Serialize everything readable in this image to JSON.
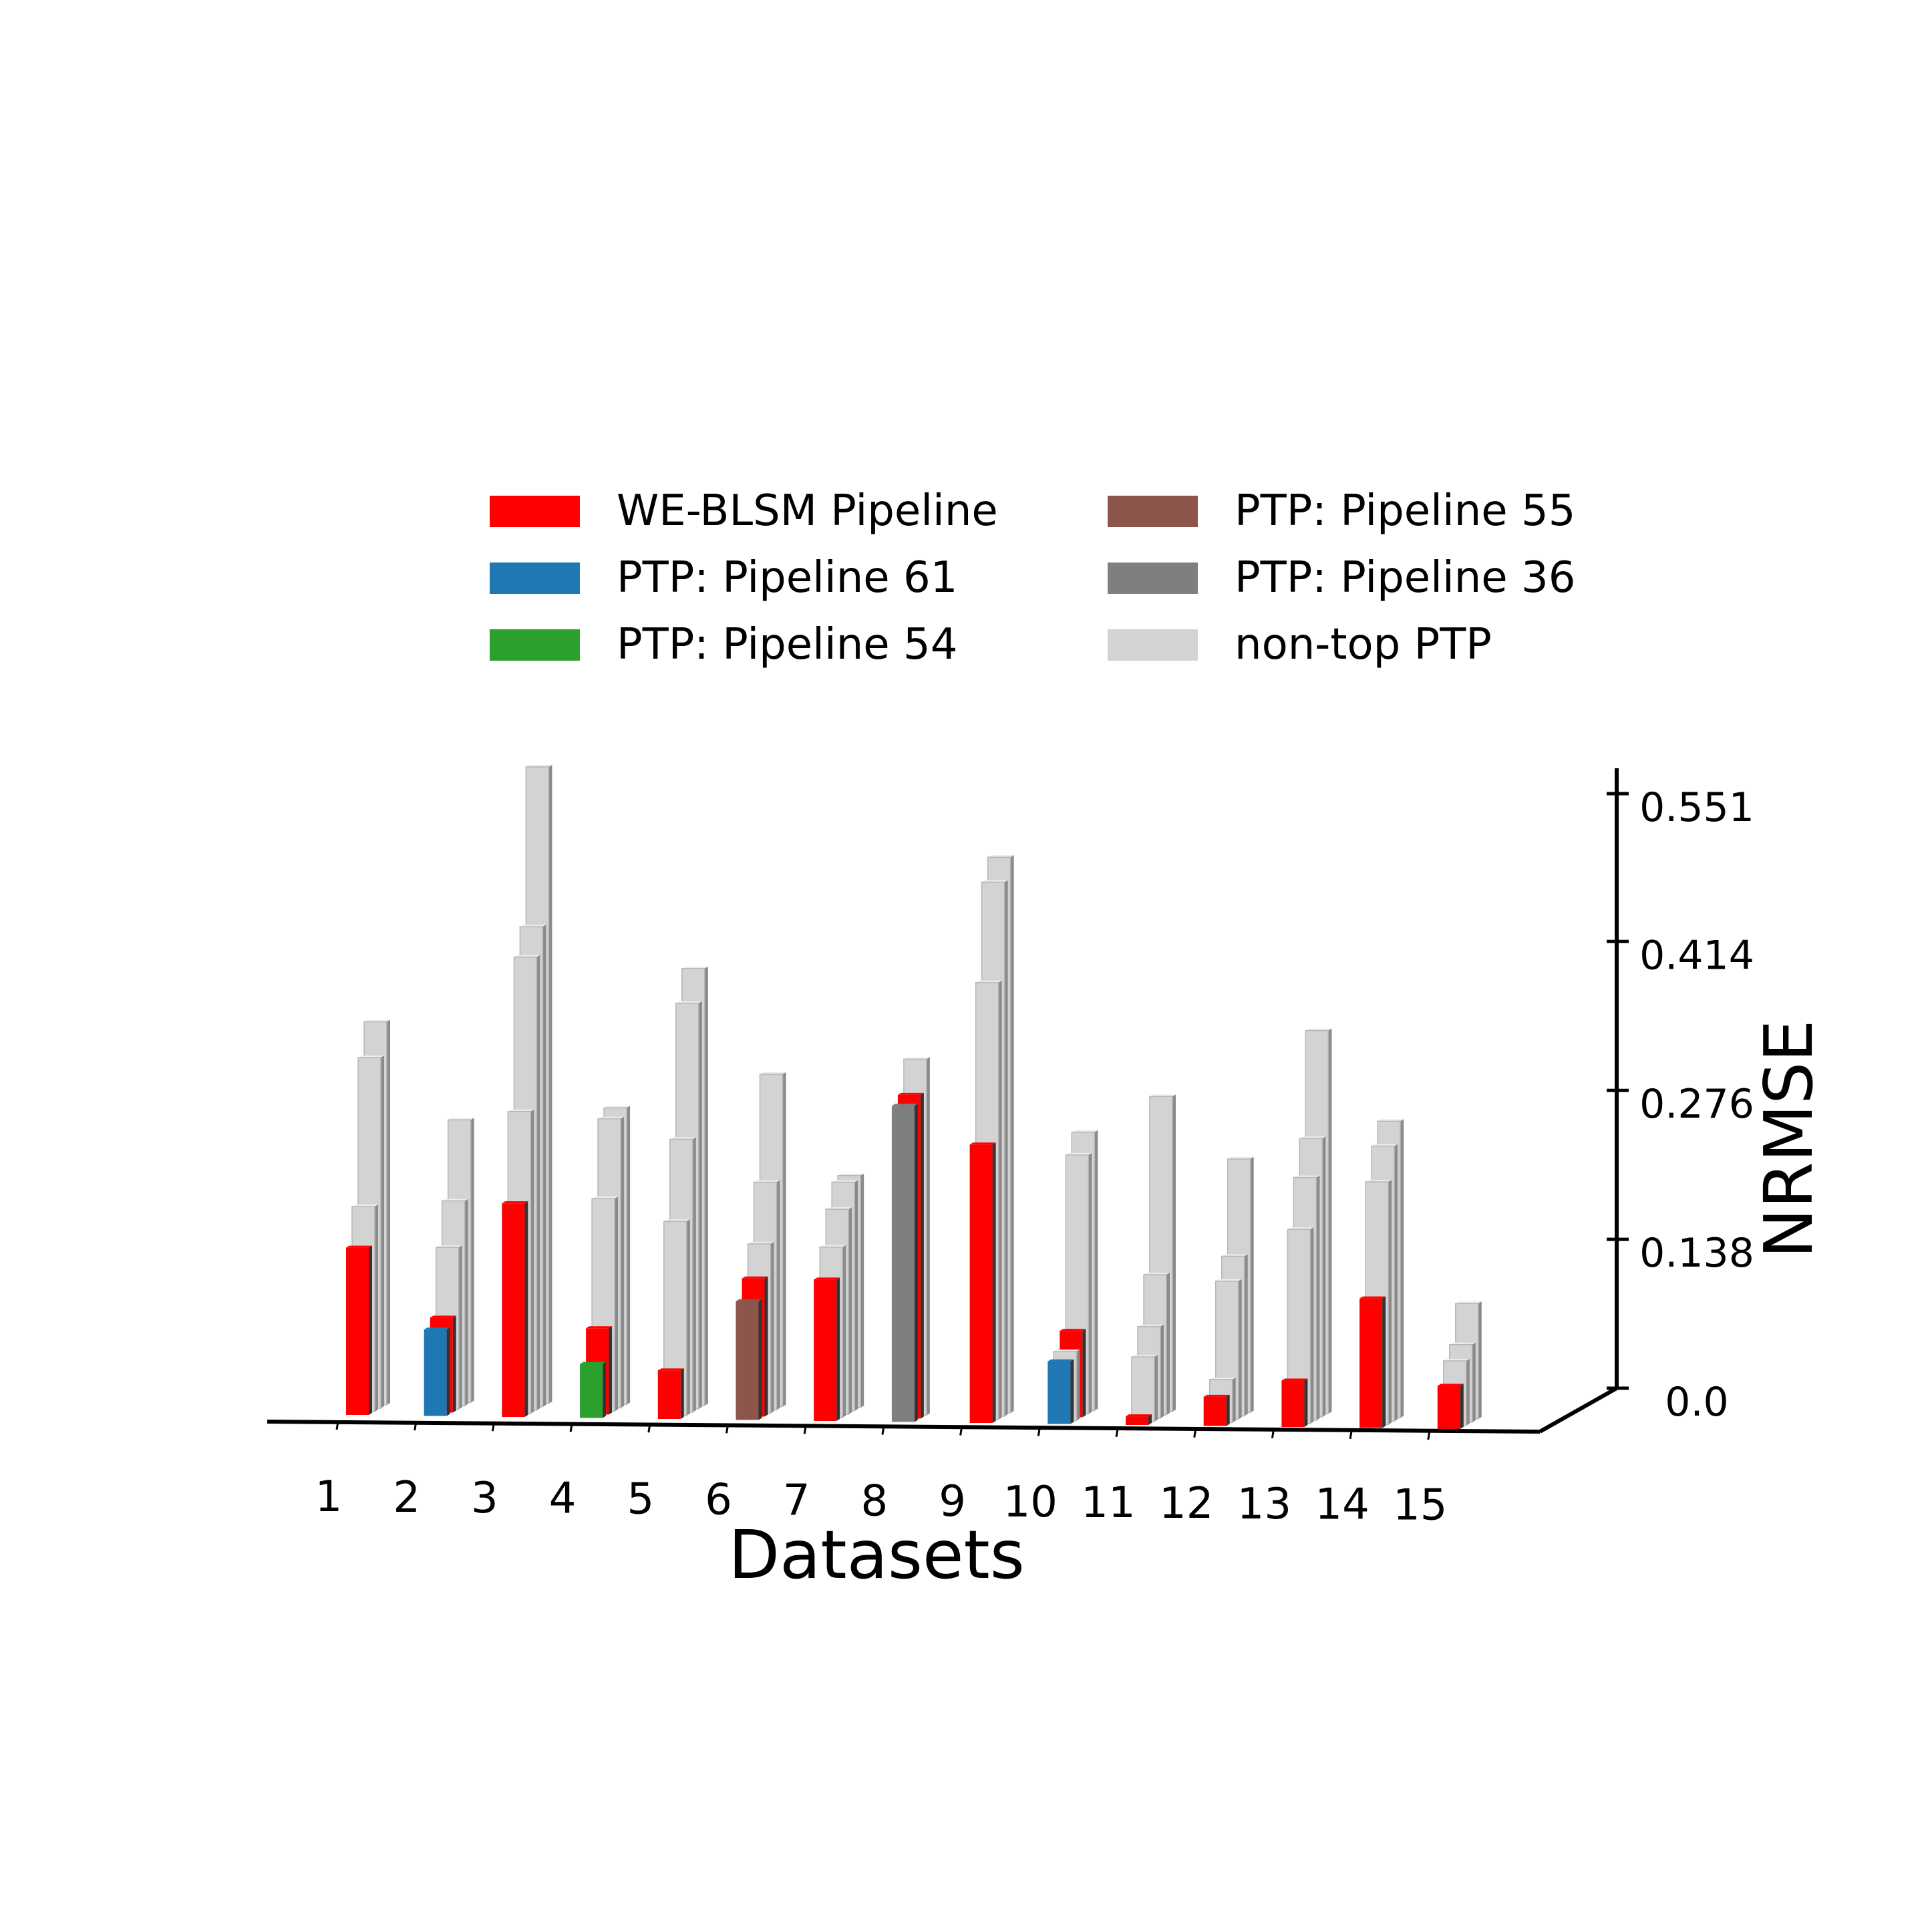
{
  "chart_data": {
    "type": "bar",
    "subtype": "3d-grouped-bar",
    "title": "",
    "xlabel": "Datasets",
    "zlabel": "NRMSE",
    "categories": [
      "1",
      "2",
      "3",
      "4",
      "5",
      "6",
      "7",
      "8",
      "9",
      "10",
      "11",
      "12",
      "13",
      "14",
      "15"
    ],
    "z_ticks": [
      "0.0",
      "0.138",
      "0.276",
      "0.414",
      "0.551"
    ],
    "zlim": [
      0,
      0.551
    ],
    "legend_position": "top-center",
    "legend": [
      {
        "label": "WE-BLSM Pipeline",
        "color": "#ff0000"
      },
      {
        "label": "PTP: Pipeline 61",
        "color": "#1f77b4"
      },
      {
        "label": "PTP: Pipeline 54",
        "color": "#2ca02c"
      },
      {
        "label": "PTP: Pipeline 55",
        "color": "#8c564b"
      },
      {
        "label": "PTP: Pipeline 36",
        "color": "#7f7f7f"
      },
      {
        "label": "non-top PTP",
        "color": "#d3d3d3"
      }
    ],
    "datasets": [
      {
        "category": "1",
        "bars": [
          {
            "series": "WE-BLSM Pipeline",
            "value": 0.155
          },
          {
            "series": "non-top PTP",
            "value": 0.19
          },
          {
            "series": "non-top PTP",
            "value": 0.325
          },
          {
            "series": "non-top PTP",
            "value": 0.355
          }
        ]
      },
      {
        "category": "2",
        "bars": [
          {
            "series": "PTP: Pipeline 61",
            "value": 0.08
          },
          {
            "series": "WE-BLSM Pipeline",
            "value": 0.088
          },
          {
            "series": "non-top PTP",
            "value": 0.15
          },
          {
            "series": "non-top PTP",
            "value": 0.19
          },
          {
            "series": "non-top PTP",
            "value": 0.262
          }
        ]
      },
      {
        "category": "3",
        "bars": [
          {
            "series": "WE-BLSM Pipeline",
            "value": 0.198
          },
          {
            "series": "non-top PTP",
            "value": 0.28
          },
          {
            "series": "non-top PTP",
            "value": 0.42
          },
          {
            "series": "non-top PTP",
            "value": 0.445
          },
          {
            "series": "non-top PTP",
            "value": 0.59
          }
        ]
      },
      {
        "category": "4",
        "bars": [
          {
            "series": "PTP: Pipeline 54",
            "value": 0.05
          },
          {
            "series": "WE-BLSM Pipeline",
            "value": 0.08
          },
          {
            "series": "non-top PTP",
            "value": 0.197
          },
          {
            "series": "non-top PTP",
            "value": 0.268
          },
          {
            "series": "non-top PTP",
            "value": 0.275
          }
        ]
      },
      {
        "category": "5",
        "bars": [
          {
            "series": "WE-BLSM Pipeline",
            "value": 0.045
          },
          {
            "series": "non-top PTP",
            "value": 0.18
          },
          {
            "series": "non-top PTP",
            "value": 0.253
          },
          {
            "series": "non-top PTP",
            "value": 0.376
          },
          {
            "series": "non-top PTP",
            "value": 0.405
          }
        ]
      },
      {
        "category": "6",
        "bars": [
          {
            "series": "PTP: Pipeline 55",
            "value": 0.11
          },
          {
            "series": "WE-BLSM Pipeline",
            "value": 0.128
          },
          {
            "series": "non-top PTP",
            "value": 0.157
          },
          {
            "series": "non-top PTP",
            "value": 0.211
          },
          {
            "series": "non-top PTP",
            "value": 0.308
          }
        ]
      },
      {
        "category": "7",
        "bars": [
          {
            "series": "WE-BLSM Pipeline",
            "value": 0.131
          },
          {
            "series": "non-top PTP",
            "value": 0.158
          },
          {
            "series": "non-top PTP",
            "value": 0.19
          },
          {
            "series": "non-top PTP",
            "value": 0.212
          },
          {
            "series": "non-top PTP",
            "value": 0.215
          }
        ]
      },
      {
        "category": "8",
        "bars": [
          {
            "series": "PTP: Pipeline 36",
            "value": 0.293
          },
          {
            "series": "WE-BLSM Pipeline",
            "value": 0.3
          },
          {
            "series": "non-top PTP",
            "value": 0.33
          }
        ]
      },
      {
        "category": "9",
        "bars": [
          {
            "series": "WE-BLSM Pipeline",
            "value": 0.258
          },
          {
            "series": "non-top PTP",
            "value": 0.405
          },
          {
            "series": "non-top PTP",
            "value": 0.495
          },
          {
            "series": "non-top PTP",
            "value": 0.515
          }
        ]
      },
      {
        "category": "10",
        "bars": [
          {
            "series": "PTP: Pipeline 61",
            "value": 0.058
          },
          {
            "series": "non-top PTP",
            "value": 0.064
          },
          {
            "series": "WE-BLSM Pipeline",
            "value": 0.08
          },
          {
            "series": "non-top PTP",
            "value": 0.24
          },
          {
            "series": "non-top PTP",
            "value": 0.258
          }
        ]
      },
      {
        "category": "11",
        "bars": [
          {
            "series": "WE-BLSM Pipeline",
            "value": 0.008
          },
          {
            "series": "non-top PTP",
            "value": 0.06
          },
          {
            "series": "non-top PTP",
            "value": 0.085
          },
          {
            "series": "non-top PTP",
            "value": 0.13
          },
          {
            "series": "non-top PTP",
            "value": 0.292
          }
        ]
      },
      {
        "category": "12",
        "bars": [
          {
            "series": "WE-BLSM Pipeline",
            "value": 0.027
          },
          {
            "series": "non-top PTP",
            "value": 0.04
          },
          {
            "series": "non-top PTP",
            "value": 0.128
          },
          {
            "series": "non-top PTP",
            "value": 0.148
          },
          {
            "series": "non-top PTP",
            "value": 0.235
          }
        ]
      },
      {
        "category": "13",
        "bars": [
          {
            "series": "WE-BLSM Pipeline",
            "value": 0.043
          },
          {
            "series": "non-top PTP",
            "value": 0.18
          },
          {
            "series": "non-top PTP",
            "value": 0.225
          },
          {
            "series": "non-top PTP",
            "value": 0.258
          },
          {
            "series": "non-top PTP",
            "value": 0.355
          }
        ]
      },
      {
        "category": "14",
        "bars": [
          {
            "series": "WE-BLSM Pipeline",
            "value": 0.12
          },
          {
            "series": "non-top PTP",
            "value": 0.225
          },
          {
            "series": "non-top PTP",
            "value": 0.255
          },
          {
            "series": "non-top PTP",
            "value": 0.275
          }
        ]
      },
      {
        "category": "15",
        "bars": [
          {
            "series": "WE-BLSM Pipeline",
            "value": 0.04
          },
          {
            "series": "non-top PTP",
            "value": 0.06
          },
          {
            "series": "non-top PTP",
            "value": 0.072
          },
          {
            "series": "non-top PTP",
            "value": 0.107
          }
        ]
      }
    ]
  }
}
